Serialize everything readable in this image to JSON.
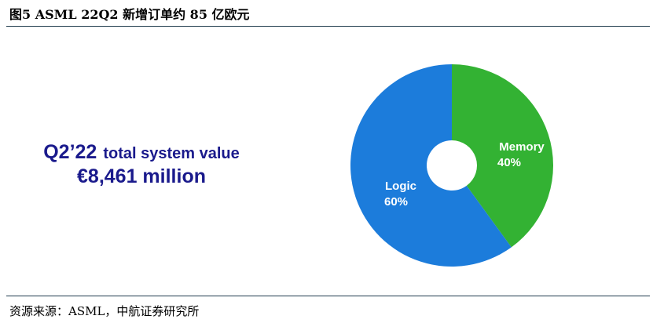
{
  "figure": {
    "title": "图5  ASML 22Q2 新增订单约 85 亿欧元",
    "source": "资源来源：ASML，中航证券研究所"
  },
  "headline": {
    "period": "Q2’22",
    "label": "total system value",
    "value": "€8,461 million"
  },
  "colors": {
    "logic": "#1c7cdb",
    "memory": "#33b233",
    "headline_text": "#1a1a8c",
    "rule": "#1e3a4c"
  },
  "chart_data": {
    "type": "pie",
    "donut": true,
    "start_angle": "12 o'clock, clockwise",
    "slices": [
      {
        "label": "Memory",
        "value": 40,
        "value_label": "40%",
        "color": "#33b233"
      },
      {
        "label": "Logic",
        "value": 60,
        "value_label": "60%",
        "color": "#1c7cdb"
      }
    ],
    "title": "",
    "legend": "none"
  }
}
